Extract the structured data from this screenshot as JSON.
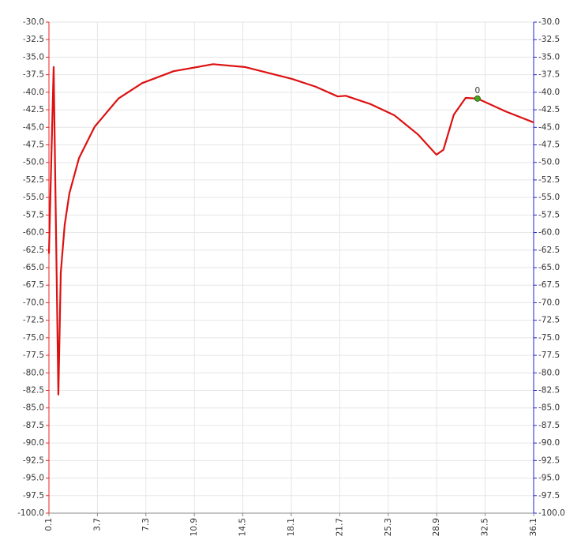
{
  "chart_data": {
    "type": "line",
    "x": [
      0.1,
      0.45,
      0.8,
      0.98,
      1.27,
      1.62,
      2.33,
      3.5,
      5.26,
      7.02,
      9.36,
      12.29,
      14.64,
      18.15,
      19.9,
      21.55,
      22.14,
      24.0,
      25.77,
      27.5,
      28.88,
      29.4,
      30.17,
      31.05,
      31.93,
      33.98,
      36.1
    ],
    "series": [
      {
        "color": "#dd1111",
        "values": [
          -63.0,
          -36.4,
          -83.1,
          -65.7,
          -58.9,
          -54.4,
          -49.4,
          -44.9,
          -40.9,
          -38.7,
          -37.0,
          -36.0,
          -36.4,
          -38.1,
          -39.2,
          -40.6,
          -40.5,
          -41.7,
          -43.3,
          -46.0,
          -48.9,
          -48.2,
          -43.2,
          -40.8,
          -40.9,
          -42.7,
          -44.3
        ]
      }
    ],
    "annotations": [
      {
        "x": 31.93,
        "y": -40.9,
        "text": "0",
        "color": "#44aa22"
      }
    ],
    "xlim": [
      0.1,
      36.1
    ],
    "xticks": [
      0.1,
      3.7,
      7.3,
      10.9,
      14.5,
      18.1,
      21.7,
      25.3,
      28.9,
      32.5,
      36.1
    ],
    "ylim": [
      -100,
      -30
    ],
    "yticks": [
      {
        "value": -30,
        "label": "-30.0"
      },
      -32.5,
      {
        "value": -35,
        "label": "-35.0"
      },
      -37.5,
      {
        "value": -40,
        "label": "-40.0"
      },
      -42.5,
      {
        "value": -45,
        "label": "-45.0"
      },
      -47.5,
      {
        "value": -50,
        "label": "-50.0"
      },
      -52.5,
      {
        "value": -55,
        "label": "-55.0"
      },
      -57.5,
      {
        "value": -60,
        "label": "-60.0"
      },
      -62.5,
      {
        "value": -65,
        "label": "-65.0"
      },
      -67.5,
      {
        "value": -70,
        "label": "-70.0"
      },
      -72.5,
      {
        "value": -75,
        "label": "-75.0"
      },
      -77.5,
      {
        "value": -80,
        "label": "-80.0"
      },
      -82.5,
      {
        "value": -85,
        "label": "-85.0"
      },
      -87.5,
      {
        "value": -90,
        "label": "-90.0"
      },
      -92.5,
      {
        "value": -95,
        "label": "-95.0"
      },
      -97.5,
      {
        "value": -100,
        "label": "-100.0"
      }
    ],
    "y2lim": [
      -100,
      -30
    ],
    "y2ticks": [
      {
        "value": -30,
        "label": "-30.0"
      },
      -32.5,
      {
        "value": -35,
        "label": "-35.0"
      },
      -37.5,
      {
        "value": -40,
        "label": "-40.0"
      },
      -42.5,
      {
        "value": -45,
        "label": "-45.0"
      },
      -47.5,
      {
        "value": -50,
        "label": "-50.0"
      },
      -52.5,
      {
        "value": -55,
        "label": "-55.0"
      },
      -57.5,
      {
        "value": -60,
        "label": "-60.0"
      },
      -62.5,
      {
        "value": -65,
        "label": "-65.0"
      },
      -67.5,
      {
        "value": -70,
        "label": "-70.0"
      },
      -72.5,
      {
        "value": -75,
        "label": "-75.0"
      },
      -77.5,
      {
        "value": -80,
        "label": "-80.0"
      },
      -82.5,
      {
        "value": -85,
        "label": "-85.0"
      },
      -87.5,
      {
        "value": -90,
        "label": "-90.0"
      },
      -92.5,
      {
        "value": -95,
        "label": "-95.0"
      },
      -97.5,
      {
        "value": -100,
        "label": "-100.0"
      }
    ],
    "grid": true,
    "y_axis_color": "#ee2222",
    "y2_axis_color": "#2222cc"
  }
}
